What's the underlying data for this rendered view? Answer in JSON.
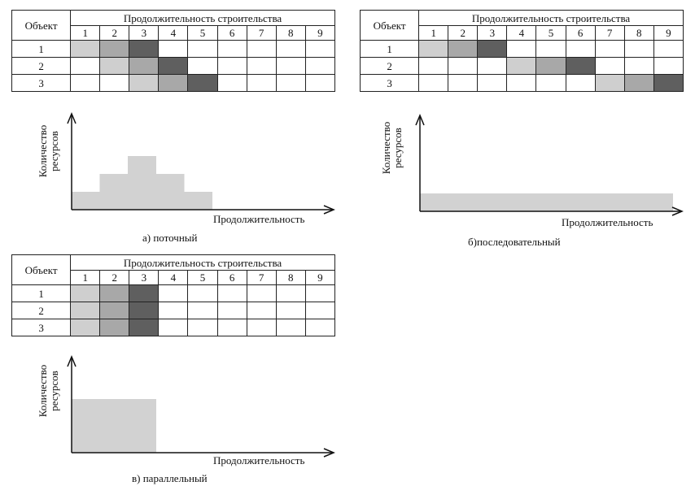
{
  "common": {
    "object_header": "Объект",
    "duration_header": "Продолжительность строительства",
    "columns": [
      "1",
      "2",
      "3",
      "4",
      "5",
      "6",
      "7",
      "8",
      "9"
    ],
    "rows": [
      "1",
      "2",
      "3"
    ],
    "y_axis_label_line1": "Количество",
    "y_axis_label_line2": "ресурсов",
    "x_axis_label": "Продолжительность",
    "colors": {
      "light": "#cfcfcf",
      "medium": "#a8a8a8",
      "dark": "#5f5f5f",
      "resource": "#d2d2d2"
    }
  },
  "panels": [
    {
      "id": "a",
      "caption": "а) поточный",
      "schedule": [
        [
          "light",
          "medium",
          "dark",
          "",
          "",
          "",
          "",
          "",
          ""
        ],
        [
          "",
          "light",
          "medium",
          "dark",
          "",
          "",
          "",
          "",
          ""
        ],
        [
          "",
          "",
          "light",
          "medium",
          "dark",
          "",
          "",
          "",
          ""
        ]
      ],
      "chart_data": {
        "type": "area",
        "x": [
          1,
          2,
          3,
          4,
          5
        ],
        "values": [
          1,
          2,
          3,
          2,
          1
        ],
        "xlabel": "Продолжительность",
        "ylabel": "Количество ресурсов"
      }
    },
    {
      "id": "b",
      "caption": "б)последовательный",
      "schedule": [
        [
          "light",
          "medium",
          "dark",
          "",
          "",
          "",
          "",
          "",
          ""
        ],
        [
          "",
          "",
          "",
          "light",
          "medium",
          "dark",
          "",
          "",
          ""
        ],
        [
          "",
          "",
          "",
          "",
          "",
          "",
          "light",
          "medium",
          "dark"
        ]
      ],
      "chart_data": {
        "type": "area",
        "x": [
          1,
          2,
          3,
          4,
          5,
          6,
          7,
          8,
          9
        ],
        "values": [
          1,
          1,
          1,
          1,
          1,
          1,
          1,
          1,
          1
        ],
        "xlabel": "Продолжительность",
        "ylabel": "Количество ресурсов"
      }
    },
    {
      "id": "c",
      "caption": "в) параллельный",
      "schedule": [
        [
          "light",
          "medium",
          "dark",
          "",
          "",
          "",
          "",
          "",
          ""
        ],
        [
          "light",
          "medium",
          "dark",
          "",
          "",
          "",
          "",
          "",
          ""
        ],
        [
          "light",
          "medium",
          "dark",
          "",
          "",
          "",
          "",
          "",
          ""
        ]
      ],
      "chart_data": {
        "type": "area",
        "x": [
          1,
          2,
          3
        ],
        "values": [
          3,
          3,
          3
        ],
        "xlabel": "Продолжительность",
        "ylabel": "Количество ресурсов"
      }
    }
  ]
}
